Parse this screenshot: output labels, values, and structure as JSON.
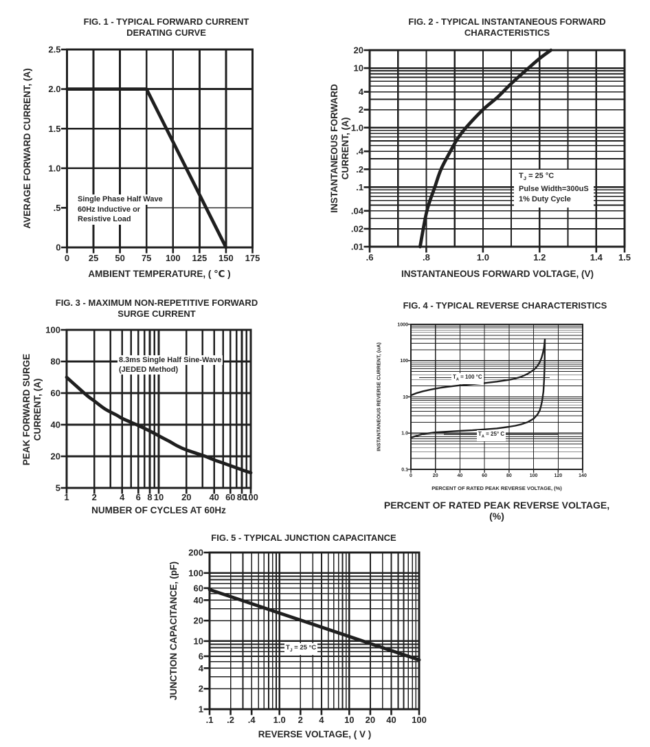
{
  "page": {
    "background": "#ffffff",
    "ink": "#262626"
  },
  "chart_data": [
    {
      "id": "fig1",
      "type": "line",
      "title": "FIG. 1 - TYPICAL FORWARD CURRENT\nDERATING CURVE",
      "xlabel": "AMBIENT TEMPERATURE, ( ℃ )",
      "ylabel": "AVERAGE FORWARD CURRENT, (A)",
      "x_axis": {
        "scale": "linear",
        "min": 0,
        "max": 175,
        "ticks": [
          [
            "0",
            0
          ],
          [
            "25",
            25
          ],
          [
            "50",
            50
          ],
          [
            "75",
            75
          ],
          [
            "100",
            100
          ],
          [
            "125",
            125
          ],
          [
            "150",
            150
          ],
          [
            "175",
            175
          ]
        ]
      },
      "y_axis": {
        "scale": "linear",
        "min": 0,
        "max": 2.5,
        "ticks": [
          [
            "0",
            0
          ],
          [
            ".5",
            0.5
          ],
          [
            "1.0",
            1
          ],
          [
            "1.5",
            1.5
          ],
          [
            "2.0",
            2
          ],
          [
            "2.5",
            2.5
          ]
        ]
      },
      "series": [
        {
          "name": "derating-curve",
          "points": [
            [
              0,
              2
            ],
            [
              75,
              2
            ],
            [
              150,
              0
            ]
          ]
        }
      ],
      "annotation": {
        "lines": [
          "Single Phase Half Wave",
          "60Hz Inductive or",
          "Resistive Load"
        ]
      }
    },
    {
      "id": "fig2",
      "type": "line",
      "title": "FIG. 2 - TYPICAL INSTANTANEOUS FORWARD\nCHARACTERISTICS",
      "xlabel": "INSTANTANEOUS FORWARD VOLTAGE, (V)",
      "ylabel": "INSTANTANEOUS FORWARD\nCURRENT, (A)",
      "x_axis": {
        "scale": "linear",
        "min": 0.6,
        "max": 1.5,
        "ticks": [
          [
            ".6",
            0.6
          ],
          [
            ".8",
            0.8
          ],
          [
            "1.0",
            1.0
          ],
          [
            "1.2",
            1.2
          ],
          [
            "1.4",
            1.4
          ],
          [
            "1.5",
            1.5
          ]
        ]
      },
      "y_axis": {
        "scale": "log",
        "min": 0.01,
        "max": 20,
        "ticks": [
          [
            "20",
            20
          ],
          [
            "10",
            10
          ],
          [
            "4",
            4
          ],
          [
            "2",
            2
          ],
          [
            "1.0",
            1
          ],
          [
            ".4",
            0.4
          ],
          [
            ".2",
            0.2
          ],
          [
            ".1",
            0.1
          ],
          [
            ".04",
            0.04
          ],
          [
            ".02",
            0.02
          ],
          [
            ".01",
            0.01
          ]
        ]
      },
      "series": [
        {
          "name": "forward-characteristic",
          "points": [
            [
              0.778,
              0.01
            ],
            [
              0.802,
              0.04
            ],
            [
              0.83,
              0.1
            ],
            [
              0.852,
              0.2
            ],
            [
              0.885,
              0.4
            ],
            [
              0.91,
              0.65
            ],
            [
              0.94,
              1.0
            ],
            [
              1.0,
              2.0
            ],
            [
              1.05,
              3.2
            ],
            [
              1.1,
              5.5
            ],
            [
              1.15,
              9
            ],
            [
              1.2,
              14.5
            ],
            [
              1.24,
              20
            ]
          ]
        }
      ],
      "annotation": {
        "lines": [
          "T[J] = 25 °C",
          "Pulse Width=300uS",
          "1% Duty Cycle"
        ]
      }
    },
    {
      "id": "fig3",
      "type": "line",
      "title": "FIG. 3 - MAXIMUM NON-REPETITIVE FORWARD\nSURGE CURRENT",
      "xlabel": "NUMBER OF CYCLES AT 60Hz",
      "ylabel": "PEAK FORWARD SURGE\nCURRENT, (A)",
      "x_axis": {
        "scale": "log",
        "min": 1,
        "max": 100,
        "ticks": [
          [
            "1",
            1
          ],
          [
            "2",
            2
          ],
          [
            "4",
            4
          ],
          [
            "6",
            6
          ],
          [
            "8",
            8
          ],
          [
            "10",
            10
          ],
          [
            "20",
            20
          ],
          [
            "40",
            40
          ],
          [
            "60",
            60
          ],
          [
            "80",
            80
          ],
          [
            "100",
            100
          ]
        ]
      },
      "y_axis": {
        "scale": "linear",
        "min": 5,
        "max": 100,
        "ticks": [
          [
            "100",
            100
          ],
          [
            "80",
            80
          ],
          [
            "60",
            60
          ],
          [
            "40",
            40
          ],
          [
            "20",
            20
          ],
          [
            "5",
            5
          ]
        ]
      },
      "series": [
        {
          "name": "surge-current",
          "points": [
            [
              1,
              70
            ],
            [
              1.3,
              64
            ],
            [
              1.7,
              58
            ],
            [
              2,
              55
            ],
            [
              2.6,
              50
            ],
            [
              3.5,
              46
            ],
            [
              4,
              44
            ],
            [
              5,
              41.5
            ],
            [
              6,
              39.5
            ],
            [
              8,
              36
            ],
            [
              10,
              33
            ],
            [
              13,
              29.5
            ],
            [
              16,
              26.5
            ],
            [
              20,
              24
            ],
            [
              26,
              21.8
            ],
            [
              32,
              20
            ],
            [
              40,
              18.3
            ],
            [
              50,
              16.8
            ],
            [
              65,
              15
            ],
            [
              80,
              13.6
            ],
            [
              100,
              12.2
            ]
          ]
        }
      ],
      "annotation": {
        "lines": [
          "8.3ms Single Half Sine-Wave",
          "(JEDED Method)"
        ]
      }
    },
    {
      "id": "fig4",
      "type": "line",
      "title": "FIG. 4 - TYPICAL REVERSE CHARACTERISTICS",
      "xlabel": "PERCENT OF RATED PEAK REVERSE VOLTAGE, (%)",
      "xlabel_small": "PERCENT OF RATED PEAK REVERSE VOLTAGE, (%)",
      "ylabel": "INSTANTANEOUS REVERSE CURRENT, (uA)",
      "x_axis": {
        "scale": "linear",
        "min": 0,
        "max": 140,
        "ticks": [
          [
            "0",
            0
          ],
          [
            "20",
            20
          ],
          [
            "40",
            40
          ],
          [
            "60",
            60
          ],
          [
            "80",
            80
          ],
          [
            "100",
            100
          ],
          [
            "120",
            120
          ],
          [
            "140",
            140
          ]
        ]
      },
      "y_axis": {
        "scale": "log",
        "min": 0.1,
        "max": 1000,
        "ticks": [
          [
            "1000",
            1000
          ],
          [
            "100",
            100
          ],
          [
            "10",
            10
          ],
          [
            "1.0",
            1
          ],
          [
            "0.1",
            0.1
          ]
        ]
      },
      "series": [
        {
          "name": "T[A] = 100 °C",
          "points": [
            [
              0,
              11
            ],
            [
              5,
              12.8
            ],
            [
              10,
              14.3
            ],
            [
              15,
              15.6
            ],
            [
              20,
              16.8
            ],
            [
              25,
              18
            ],
            [
              30,
              19
            ],
            [
              40,
              20.8
            ],
            [
              50,
              22.3
            ],
            [
              60,
              24
            ],
            [
              70,
              26.3
            ],
            [
              80,
              29.5
            ],
            [
              85,
              32
            ],
            [
              90,
              36
            ],
            [
              95,
              43
            ],
            [
              100,
              55
            ],
            [
              103,
              70
            ],
            [
              105,
              90
            ],
            [
              106.5,
              120
            ],
            [
              107.5,
              160
            ],
            [
              108.5,
              230
            ],
            [
              109.2,
              380
            ]
          ]
        },
        {
          "name": "T[A] = 25° C",
          "points": [
            [
              0,
              0.75
            ],
            [
              5,
              0.85
            ],
            [
              10,
              0.95
            ],
            [
              15,
              1.0
            ],
            [
              20,
              1.05
            ],
            [
              30,
              1.1
            ],
            [
              40,
              1.15
            ],
            [
              50,
              1.2
            ],
            [
              60,
              1.27
            ],
            [
              70,
              1.35
            ],
            [
              80,
              1.5
            ],
            [
              85,
              1.6
            ],
            [
              90,
              1.75
            ],
            [
              95,
              2.0
            ],
            [
              100,
              2.5
            ],
            [
              103,
              3.2
            ],
            [
              105,
              4.2
            ],
            [
              106,
              5.5
            ],
            [
              107,
              8
            ],
            [
              108,
              14
            ],
            [
              108.6,
              30
            ],
            [
              109,
              70
            ],
            [
              109.2,
              380
            ]
          ]
        }
      ]
    },
    {
      "id": "fig5",
      "type": "line",
      "title": "FIG. 5 - TYPICAL JUNCTION CAPACITANCE",
      "xlabel": "REVERSE VOLTAGE, ( V )",
      "ylabel": "JUNCTION CAPACITANCE, (pF)",
      "x_axis": {
        "scale": "log",
        "min": 0.1,
        "max": 100,
        "ticks": [
          [
            ".1",
            0.1
          ],
          [
            ".2",
            0.2
          ],
          [
            ".4",
            0.4
          ],
          [
            "1.0",
            1
          ],
          [
            "2",
            2
          ],
          [
            "4",
            4
          ],
          [
            "10",
            10
          ],
          [
            "20",
            20
          ],
          [
            "40",
            40
          ],
          [
            "100",
            100
          ]
        ]
      },
      "y_axis": {
        "scale": "log",
        "min": 1,
        "max": 200,
        "ticks": [
          [
            "200",
            200
          ],
          [
            "100",
            100
          ],
          [
            "60",
            60
          ],
          [
            "40",
            40
          ],
          [
            "20",
            20
          ],
          [
            "10",
            10
          ],
          [
            "6",
            6
          ],
          [
            "4",
            4
          ],
          [
            "2",
            2
          ],
          [
            "1",
            1
          ]
        ]
      },
      "series": [
        {
          "name": "junction-capacitance",
          "points": [
            [
              0.1,
              57
            ],
            [
              0.3,
              39.2
            ],
            [
              1,
              25.8
            ],
            [
              3,
              17.7
            ],
            [
              10,
              11.7
            ],
            [
              30,
              8.0
            ],
            [
              100,
              5.3
            ]
          ]
        }
      ],
      "annotation": {
        "lines": [
          "T[J] = 25 °C"
        ]
      }
    }
  ]
}
